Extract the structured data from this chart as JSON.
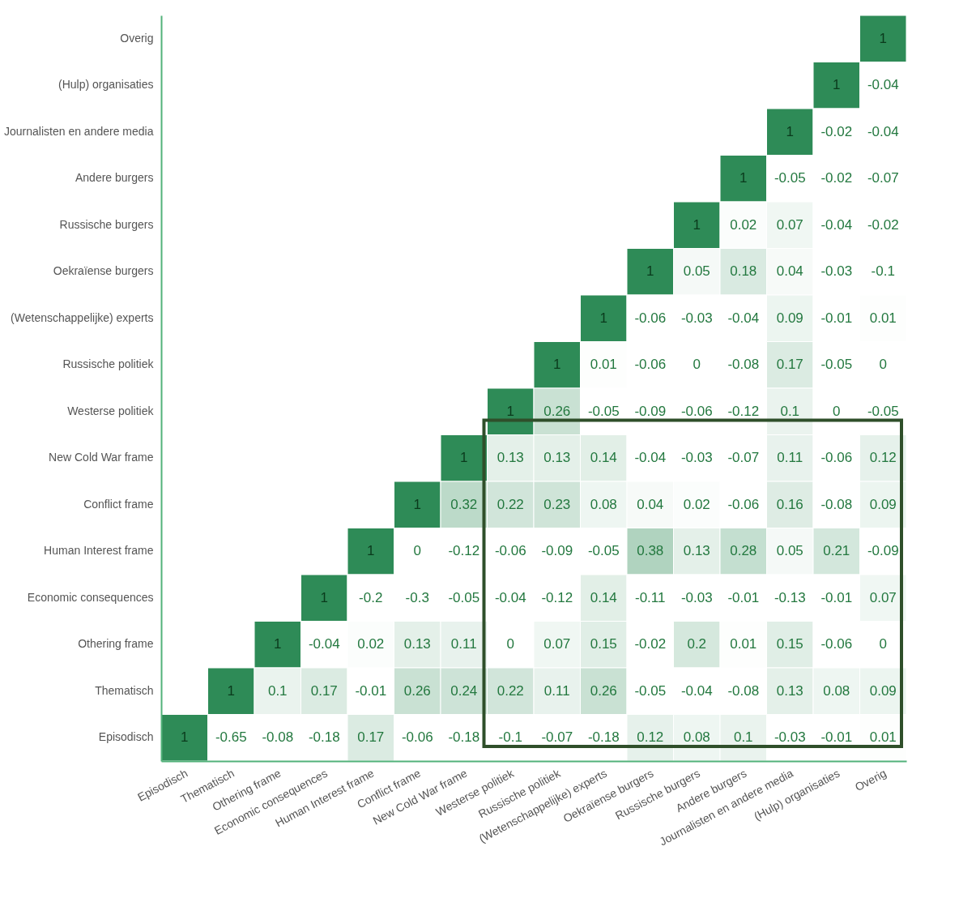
{
  "chart_data": {
    "type": "heatmap",
    "data_labels": true,
    "categories": [
      "Episodisch",
      "Thematisch",
      "Othering frame",
      "Economic consequences",
      "Human Interest frame",
      "Conflict frame",
      "New Cold War frame",
      "Westerse politiek",
      "Russische politiek",
      "(Wetenschappelijke) experts",
      "Oekraïense burgers",
      "Russische burgers",
      "Andere burgers",
      "Journalisten en andere media",
      "(Hulp) organisaties",
      "Overig"
    ],
    "y_categories": [
      "Overig",
      "(Hulp) organisaties",
      "Journalisten en andere media",
      "Andere burgers",
      "Russische burgers",
      "Oekraïense burgers",
      "(Wetenschappelijke) experts",
      "Russische politiek",
      "Westerse politiek",
      "New Cold War frame",
      "Conflict frame",
      "Human Interest frame",
      "Economic consequences",
      "Othering frame",
      "Thematisch",
      "Episodisch"
    ],
    "cells": [
      [
        null,
        null,
        null,
        null,
        null,
        null,
        null,
        null,
        null,
        null,
        null,
        null,
        null,
        null,
        null,
        1
      ],
      [
        null,
        null,
        null,
        null,
        null,
        null,
        null,
        null,
        null,
        null,
        null,
        null,
        null,
        null,
        1,
        -0.04
      ],
      [
        null,
        null,
        null,
        null,
        null,
        null,
        null,
        null,
        null,
        null,
        null,
        null,
        null,
        1,
        -0.02,
        -0.04
      ],
      [
        null,
        null,
        null,
        null,
        null,
        null,
        null,
        null,
        null,
        null,
        null,
        null,
        1,
        -0.05,
        -0.02,
        -0.07
      ],
      [
        null,
        null,
        null,
        null,
        null,
        null,
        null,
        null,
        null,
        null,
        null,
        1,
        0.02,
        0.07,
        -0.04,
        -0.02
      ],
      [
        null,
        null,
        null,
        null,
        null,
        null,
        null,
        null,
        null,
        null,
        1,
        0.05,
        0.18,
        0.04,
        -0.03,
        -0.1
      ],
      [
        null,
        null,
        null,
        null,
        null,
        null,
        null,
        null,
        null,
        1,
        -0.06,
        -0.03,
        -0.04,
        0.09,
        -0.01,
        0.01
      ],
      [
        null,
        null,
        null,
        null,
        null,
        null,
        null,
        null,
        1,
        0.01,
        -0.06,
        0,
        -0.08,
        0.17,
        -0.05,
        0
      ],
      [
        null,
        null,
        null,
        null,
        null,
        null,
        null,
        1,
        0.26,
        -0.05,
        -0.09,
        -0.06,
        -0.12,
        0.1,
        0,
        -0.05
      ],
      [
        null,
        null,
        null,
        null,
        null,
        null,
        1,
        0.13,
        0.13,
        0.14,
        -0.04,
        -0.03,
        -0.07,
        0.11,
        -0.06,
        0.12
      ],
      [
        null,
        null,
        null,
        null,
        null,
        1,
        0.32,
        0.22,
        0.23,
        0.08,
        0.04,
        0.02,
        -0.06,
        0.16,
        -0.08,
        0.09
      ],
      [
        null,
        null,
        null,
        null,
        1,
        0,
        -0.12,
        -0.06,
        -0.09,
        -0.05,
        0.38,
        0.13,
        0.28,
        0.05,
        0.21,
        -0.09
      ],
      [
        null,
        null,
        null,
        1,
        -0.2,
        -0.3,
        -0.05,
        -0.04,
        -0.12,
        0.14,
        -0.11,
        -0.03,
        -0.01,
        -0.13,
        -0.01,
        0.07
      ],
      [
        null,
        null,
        1,
        -0.04,
        0.02,
        0.13,
        0.11,
        0,
        0.07,
        0.15,
        -0.02,
        0.2,
        0.01,
        0.15,
        -0.06,
        0
      ],
      [
        null,
        1,
        0.1,
        0.17,
        -0.01,
        0.26,
        0.24,
        0.22,
        0.11,
        0.26,
        -0.05,
        -0.04,
        -0.08,
        0.13,
        0.08,
        0.09
      ],
      [
        1,
        -0.65,
        -0.08,
        -0.18,
        0.17,
        -0.06,
        -0.18,
        -0.1,
        -0.07,
        -0.18,
        0.12,
        0.08,
        0.1,
        -0.03,
        -0.01,
        0.01
      ]
    ]
  }
}
